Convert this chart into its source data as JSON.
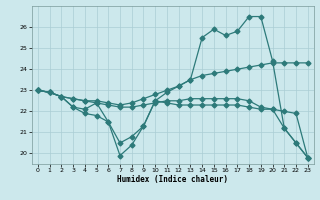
{
  "xlabel": "Humidex (Indice chaleur)",
  "background_color": "#cce8ec",
  "grid_color": "#aacdd4",
  "line_color": "#2d7a7a",
  "xlim": [
    -0.5,
    23.5
  ],
  "ylim": [
    19.5,
    27.0
  ],
  "xticks": [
    0,
    1,
    2,
    3,
    4,
    5,
    6,
    7,
    8,
    9,
    10,
    11,
    12,
    13,
    14,
    15,
    16,
    17,
    18,
    19,
    20,
    21,
    22,
    23
  ],
  "yticks": [
    20,
    21,
    22,
    23,
    24,
    25,
    26
  ],
  "line1_x": [
    0,
    1,
    2,
    3,
    4,
    5,
    6,
    7,
    8,
    9,
    10,
    11,
    12,
    13,
    14,
    15,
    16,
    17,
    18,
    19,
    20,
    21,
    22,
    23
  ],
  "line1_y": [
    23.0,
    22.9,
    22.7,
    22.2,
    22.1,
    22.4,
    21.5,
    19.9,
    20.4,
    21.3,
    22.5,
    22.9,
    23.2,
    23.5,
    25.5,
    25.9,
    25.6,
    25.8,
    26.5,
    26.5,
    24.4,
    21.2,
    20.5,
    19.8
  ],
  "line2_x": [
    0,
    1,
    2,
    3,
    4,
    5,
    6,
    7,
    8,
    9,
    10,
    11,
    12,
    13,
    14,
    15,
    16,
    17,
    18,
    19,
    20,
    21,
    22,
    23
  ],
  "line2_y": [
    23.0,
    22.9,
    22.7,
    22.6,
    22.5,
    22.5,
    22.4,
    22.3,
    22.4,
    22.6,
    22.8,
    23.0,
    23.2,
    23.5,
    23.7,
    23.8,
    23.9,
    24.0,
    24.1,
    24.2,
    24.3,
    24.3,
    24.3,
    24.3
  ],
  "line3_x": [
    0,
    1,
    2,
    3,
    4,
    5,
    6,
    7,
    8,
    9,
    10,
    11,
    12,
    13,
    14,
    15,
    16,
    17,
    18,
    19,
    20,
    21,
    22,
    23
  ],
  "line3_y": [
    23.0,
    22.9,
    22.7,
    22.6,
    22.5,
    22.4,
    22.3,
    22.2,
    22.2,
    22.3,
    22.4,
    22.5,
    22.5,
    22.6,
    22.6,
    22.6,
    22.6,
    22.6,
    22.5,
    22.2,
    22.1,
    22.0,
    21.9,
    19.8
  ],
  "line4_x": [
    0,
    1,
    2,
    3,
    4,
    5,
    6,
    7,
    8,
    9,
    10,
    11,
    12,
    13,
    14,
    15,
    16,
    17,
    18,
    19,
    20,
    21,
    22,
    23
  ],
  "line4_y": [
    23.0,
    22.9,
    22.7,
    22.2,
    21.9,
    21.8,
    21.5,
    20.5,
    20.8,
    21.3,
    22.5,
    22.4,
    22.3,
    22.3,
    22.3,
    22.3,
    22.3,
    22.3,
    22.2,
    22.1,
    22.1,
    21.2,
    20.5,
    19.8
  ]
}
